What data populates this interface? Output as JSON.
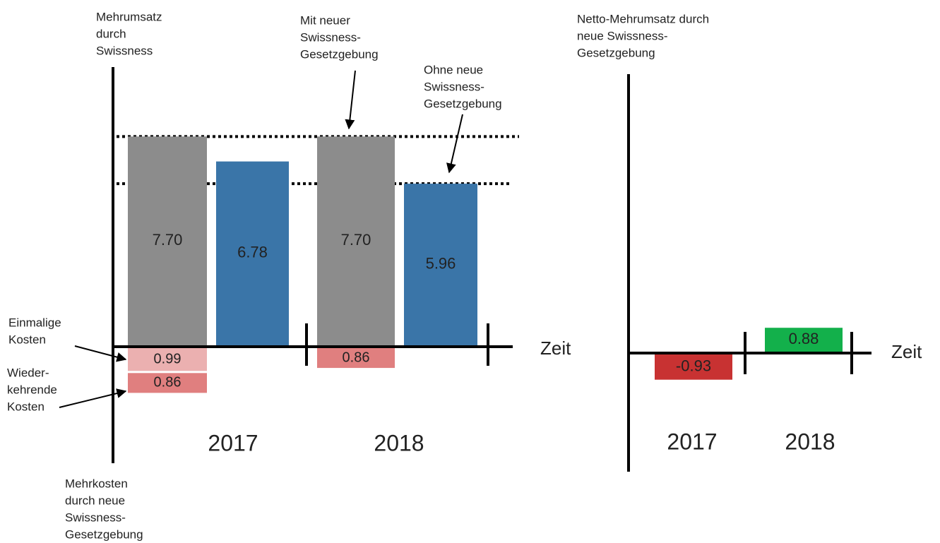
{
  "left_chart": {
    "y_label_top": [
      "Mehrumsatz",
      "durch",
      "Swissness"
    ],
    "y_label_bottom": [
      "Mehrkosten",
      "durch neue",
      "Swissness-",
      "Gesetzgebung"
    ],
    "x_label": "Zeit",
    "categories": [
      "2017",
      "2018"
    ],
    "series": [
      {
        "name_lines": [
          "Mit neuer",
          "Swissness-",
          "Gesetzgebung"
        ],
        "color": "#8c8c8c",
        "values": [
          7.7,
          7.7
        ],
        "value_labels": [
          "7.70",
          "7.70"
        ]
      },
      {
        "name_lines": [
          "Ohne neue",
          "Swissness-",
          "Gesetzgebung"
        ],
        "color": "#3a75a8",
        "values": [
          6.78,
          5.96
        ]
      }
    ],
    "costs": [
      {
        "name_lines": [
          "Einmalige",
          "Kosten"
        ],
        "color": "#ebb0b0",
        "values": [
          0.99,
          null
        ]
      },
      {
        "name_lines": [
          "Wieder-",
          "kehrende",
          "Kosten"
        ],
        "color": "#e07f7f",
        "values": [
          0.86,
          0.86
        ]
      }
    ]
  },
  "right_chart": {
    "title_lines": [
      "Netto-Mehrumsatz durch",
      "neue Swissness-",
      "Gesetzgebung"
    ],
    "x_label": "Zeit",
    "categories": [
      "2017",
      "2018"
    ],
    "values": [
      -0.93,
      0.88
    ],
    "colors": [
      "#c83232",
      "#13b04b"
    ]
  }
}
